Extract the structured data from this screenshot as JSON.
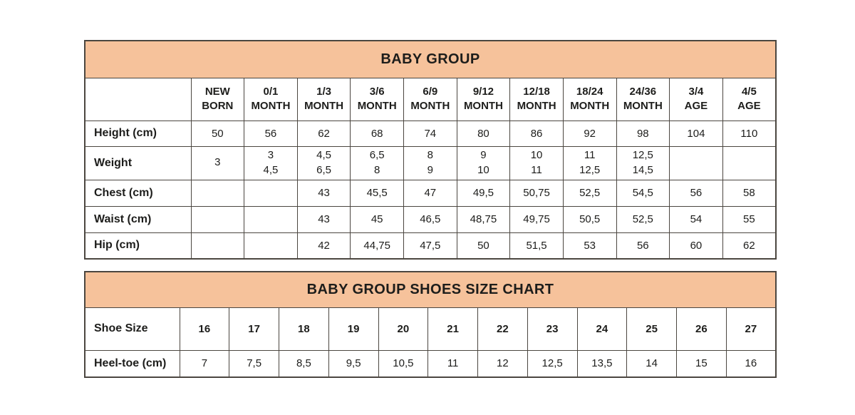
{
  "colors": {
    "header_bg": "#f6c29b",
    "border": "#4b4640",
    "text": "#1d1d1b",
    "page_bg": "#ffffff"
  },
  "size_table": {
    "title": "BABY GROUP",
    "columns": [
      "NEW\nBORN",
      "0/1\nMONTH",
      "1/3\nMONTH",
      "3/6\nMONTH",
      "6/9\nMONTH",
      "9/12\nMONTH",
      "12/18\nMONTH",
      "18/24\nMONTH",
      "24/36\nMONTH",
      "3/4\nAGE",
      "4/5\nAGE"
    ],
    "rows": [
      {
        "label": "Height (cm)",
        "values": [
          "50",
          "56",
          "62",
          "68",
          "74",
          "80",
          "86",
          "92",
          "98",
          "104",
          "110"
        ]
      },
      {
        "label": "Weight",
        "values": [
          "3",
          "3\n4,5",
          "4,5\n6,5",
          "6,5\n8",
          "8\n9",
          "9\n10",
          "10\n11",
          "11\n12,5",
          "12,5\n14,5",
          "",
          ""
        ]
      },
      {
        "label": "Chest (cm)",
        "values": [
          "",
          "",
          "43",
          "45,5",
          "47",
          "49,5",
          "50,75",
          "52,5",
          "54,5",
          "56",
          "58"
        ]
      },
      {
        "label": "Waist (cm)",
        "values": [
          "",
          "",
          "43",
          "45",
          "46,5",
          "48,75",
          "49,75",
          "50,5",
          "52,5",
          "54",
          "55"
        ]
      },
      {
        "label": "Hip (cm)",
        "values": [
          "",
          "",
          "42",
          "44,75",
          "47,5",
          "50",
          "51,5",
          "53",
          "56",
          "60",
          "62"
        ]
      }
    ]
  },
  "shoes_table": {
    "title": "BABY GROUP SHOES SIZE CHART",
    "rows": [
      {
        "label": "Shoe Size",
        "values": [
          "16",
          "17",
          "18",
          "19",
          "20",
          "21",
          "22",
          "23",
          "24",
          "25",
          "26",
          "27"
        ]
      },
      {
        "label": "Heel-toe (cm)",
        "values": [
          "7",
          "7,5",
          "8,5",
          "9,5",
          "10,5",
          "11",
          "12",
          "12,5",
          "13,5",
          "14",
          "15",
          "16"
        ]
      }
    ]
  }
}
